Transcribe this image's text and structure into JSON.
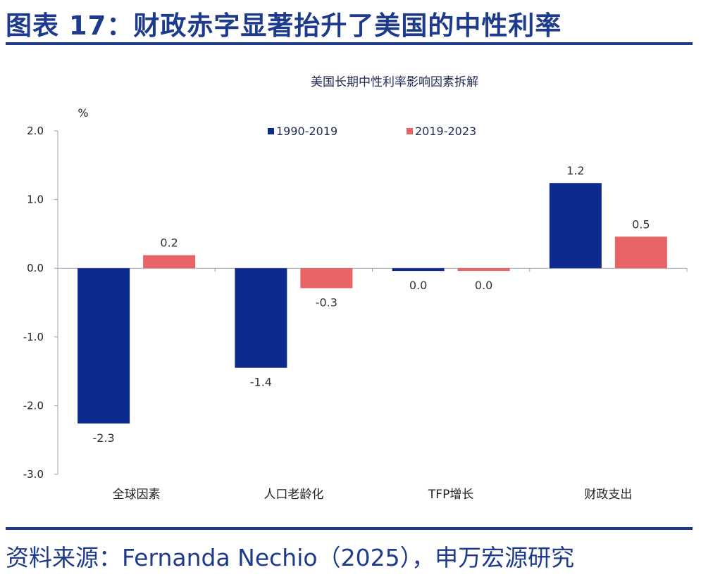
{
  "figure_title": "图表 17：财政赤字显著抬升了美国的中性利率",
  "source": "资料来源：Fernanda Nechio（2025），申万宏源研究",
  "colors": {
    "series1": "#0d2b8e",
    "series2": "#e96565",
    "title": "#1e3a8c"
  },
  "chart_data": {
    "type": "bar",
    "title": "美国长期中性利率影响因素拆解",
    "ylabel": "%",
    "ylim": [
      -3.0,
      2.0
    ],
    "yticks": [
      2.0,
      1.0,
      0.0,
      -1.0,
      -2.0,
      -3.0
    ],
    "ytick_labels": [
      "2.0",
      "1.0",
      "0.0",
      "-1.0",
      "-2.0",
      "-3.0"
    ],
    "categories": [
      "全球因素",
      "人口老龄化",
      "TFP增长",
      "财政支出"
    ],
    "series": [
      {
        "name": "1990-2019",
        "values": [
          -2.26,
          -1.45,
          -0.04,
          1.24
        ],
        "labels": [
          "-2.3",
          "-1.4",
          "0.0",
          "1.2"
        ]
      },
      {
        "name": "2019-2023",
        "values": [
          0.19,
          -0.29,
          -0.04,
          0.46
        ],
        "labels": [
          "0.2",
          "-0.3",
          "0.0",
          "0.5"
        ]
      }
    ],
    "legend_position": "top-center"
  }
}
